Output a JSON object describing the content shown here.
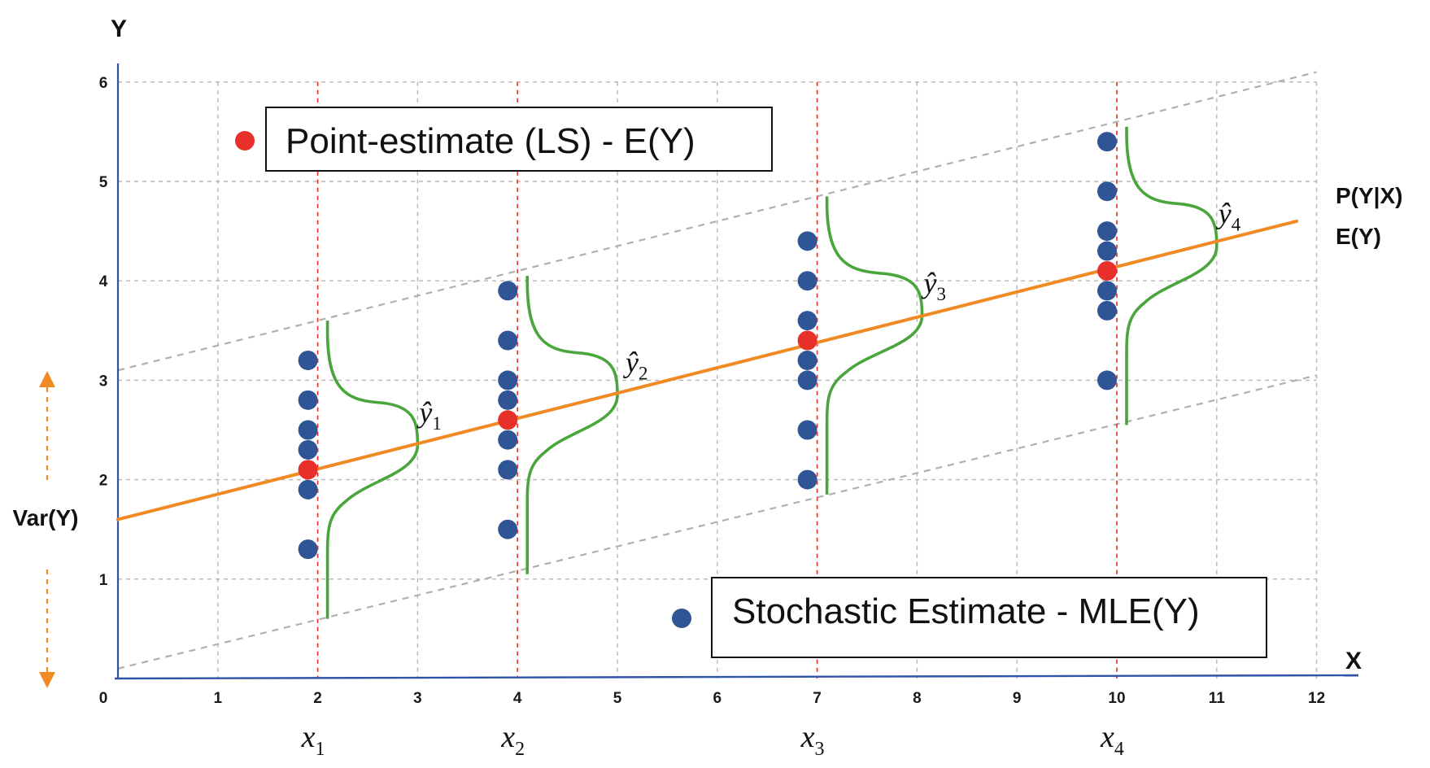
{
  "axis": {
    "x_name": "X",
    "y_name": "Y",
    "x_ticks": [
      "0",
      "1",
      "2",
      "3",
      "4",
      "5",
      "6",
      "7",
      "8",
      "9",
      "10",
      "11",
      "12"
    ],
    "y_ticks": [
      "1",
      "2",
      "3",
      "4",
      "5",
      "6"
    ]
  },
  "variance_label": "Var(Y)",
  "right_labels": {
    "conditional": "P(Y|X)",
    "expectation": "E(Y)"
  },
  "legend": {
    "point_estimate": "Point-estimate (LS) - E(Y)",
    "stochastic": "Stochastic Estimate - MLE(Y)"
  },
  "x_markers": [
    {
      "base": "x",
      "sub": "1"
    },
    {
      "base": "x",
      "sub": "2"
    },
    {
      "base": "x",
      "sub": "3"
    },
    {
      "base": "x",
      "sub": "4"
    }
  ],
  "yhat_labels": [
    {
      "base": "ŷ",
      "sub": "1"
    },
    {
      "base": "ŷ",
      "sub": "2"
    },
    {
      "base": "ŷ",
      "sub": "3"
    },
    {
      "base": "ŷ",
      "sub": "4"
    }
  ],
  "colors": {
    "regression_line": "#f08a24",
    "point_estimate": "#e8302a",
    "stochastic": "#2f5597",
    "distribution": "#4aa63c",
    "axis": "#2e54a6",
    "grid": "#b5b5b5",
    "guide": "#e8302a",
    "bounds": "#b0b0b0",
    "arrow": "#f08a24"
  },
  "chart_data": {
    "type": "scatter",
    "xlim": [
      0,
      12
    ],
    "ylim": [
      0,
      6
    ],
    "regression_line": {
      "x": [
        0,
        11.8
      ],
      "y": [
        1.6,
        4.6
      ]
    },
    "bounds": [
      {
        "x": [
          0,
          12
        ],
        "y": [
          3.1,
          6.1
        ]
      },
      {
        "x": [
          0,
          12
        ],
        "y": [
          0.1,
          3.05
        ]
      }
    ],
    "groups": [
      {
        "x": 2,
        "point_estimate": 2.1,
        "stochastic": [
          3.2,
          2.8,
          2.5,
          2.3,
          1.9,
          1.3
        ],
        "peak_x": 3.0,
        "peak_y": 2.35,
        "top": 3.6,
        "bottom": 0.6
      },
      {
        "x": 4,
        "point_estimate": 2.6,
        "stochastic": [
          3.9,
          3.4,
          3.0,
          2.8,
          2.4,
          2.1,
          1.5
        ],
        "peak_x": 5.0,
        "peak_y": 2.85,
        "top": 4.05,
        "bottom": 1.05
      },
      {
        "x": 7,
        "point_estimate": 3.4,
        "stochastic": [
          4.4,
          4.0,
          3.6,
          3.2,
          3.0,
          2.5,
          2.0
        ],
        "peak_x": 8.05,
        "peak_y": 3.65,
        "top": 4.85,
        "bottom": 1.85
      },
      {
        "x": 10,
        "point_estimate": 4.1,
        "stochastic": [
          5.4,
          4.9,
          4.5,
          4.3,
          3.9,
          3.7,
          3.0
        ],
        "peak_x": 11.0,
        "peak_y": 4.35,
        "top": 5.55,
        "bottom": 2.55
      }
    ]
  }
}
